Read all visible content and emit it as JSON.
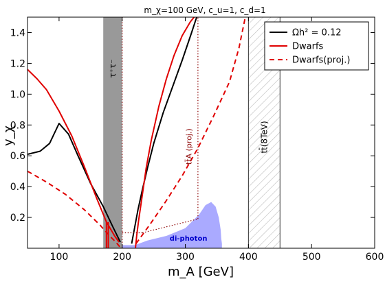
{
  "chart_data": {
    "type": "line",
    "title": "m_χ=100 GeV, c_u=1, c_d=1",
    "xlabel": "m_A [GeV]",
    "ylabel": "y_χ",
    "xlim": [
      50,
      600
    ],
    "ylim": [
      0.0,
      1.5
    ],
    "xticks": [
      "100",
      "200",
      "300",
      "400",
      "500",
      "600"
    ],
    "yticks": [
      "0.2",
      "0.4",
      "0.6",
      "0.8",
      "1.0",
      "1.2",
      "1.4"
    ],
    "grid": false,
    "legend_position": "top-right",
    "legend": [
      {
        "label": "Ωh² = 0.12",
        "color": "#000000",
        "dash": "solid"
      },
      {
        "label": "Dwarfs",
        "color": "#e00000",
        "dash": "solid"
      },
      {
        "label": "Dwarfs(proj.)",
        "color": "#e00000",
        "dash": "dashed"
      }
    ],
    "series": [
      {
        "name": "Ωh² = 0.12",
        "color": "#000000",
        "dash": "solid",
        "segments": [
          {
            "x": [
              50,
              70,
              85,
              100,
              115,
              130,
              150,
              170,
              185,
              197
            ],
            "y": [
              0.61,
              0.63,
              0.68,
              0.81,
              0.74,
              0.6,
              0.42,
              0.27,
              0.14,
              0.04
            ]
          },
          {
            "x": [
              215,
              220,
              225,
              232,
              240,
              250,
              265,
              280,
              295,
              310,
              318
            ],
            "y": [
              0.03,
              0.14,
              0.25,
              0.38,
              0.52,
              0.68,
              0.88,
              1.05,
              1.22,
              1.4,
              1.5
            ]
          }
        ]
      },
      {
        "name": "Dwarfs",
        "color": "#e00000",
        "dash": "solid",
        "segments": [
          {
            "x": [
              50,
              65,
              80,
              100,
              120,
              140,
              160,
              175,
              188,
              195
            ],
            "y": [
              1.16,
              1.1,
              1.03,
              0.89,
              0.73,
              0.53,
              0.32,
              0.17,
              0.08,
              0.04
            ]
          },
          {
            "x": [
              175,
              175
            ],
            "y": [
              0.17,
              0.0
            ]
          },
          {
            "x": [
              178,
              178
            ],
            "y": [
              0.17,
              0.0
            ]
          },
          {
            "x": [
              221,
              223,
              226,
              231,
              238,
              246,
              258,
              270,
              282,
              295,
              308,
              314
            ],
            "y": [
              0.0,
              0.08,
              0.18,
              0.32,
              0.52,
              0.7,
              0.92,
              1.1,
              1.25,
              1.38,
              1.47,
              1.5
            ]
          }
        ]
      },
      {
        "name": "Dwarfs(proj.)",
        "color": "#e00000",
        "dash": "dashed",
        "segments": [
          {
            "x": [
              50,
              80,
              110,
              140,
              165,
              180,
              190,
              196
            ],
            "y": [
              0.5,
              0.43,
              0.35,
              0.25,
              0.15,
              0.08,
              0.04,
              0.01
            ]
          },
          {
            "x": [
              222,
              245,
              270,
              295,
              320,
              345,
              370,
              385,
              395
            ],
            "y": [
              0.03,
              0.16,
              0.31,
              0.47,
              0.65,
              0.86,
              1.08,
              1.3,
              1.5
            ]
          }
        ]
      },
      {
        "name": "",
        "color": "#8b0000",
        "dash": "dotted",
        "segments": [
          {
            "x": [
              200,
              200
            ],
            "y": [
              0.0,
              1.5
            ]
          },
          {
            "x": [
              200,
              232
            ],
            "y": [
              0.1,
              0.1
            ]
          },
          {
            "x": [
              232,
              320
            ],
            "y": [
              0.1,
              0.19
            ]
          },
          {
            "x": [
              320,
              320
            ],
            "y": [
              0.19,
              1.5
            ]
          }
        ]
      }
    ],
    "bands": [
      {
        "label": "τ⁺τ⁻",
        "x": [
          170,
          200
        ],
        "color": "#999999",
        "style": "solid"
      },
      {
        "label": "tt̄(8TeV)",
        "x": [
          400,
          450
        ],
        "color": "#d8d8d8",
        "style": "hatched"
      }
    ],
    "regions": [
      {
        "label": "di-photon",
        "color": "#aaaaff",
        "x": [
          200,
          220,
          240,
          270,
          300,
          322,
          332,
          341,
          348,
          353,
          356,
          357,
          358,
          358,
          200
        ],
        "y": [
          0.02,
          0.02,
          0.05,
          0.08,
          0.13,
          0.22,
          0.28,
          0.3,
          0.27,
          0.2,
          0.12,
          0.06,
          0.03,
          0.0,
          0.0
        ]
      }
    ],
    "annotations": [
      {
        "text": "tt̄A (proj.)",
        "color": "#8b0000"
      }
    ]
  }
}
